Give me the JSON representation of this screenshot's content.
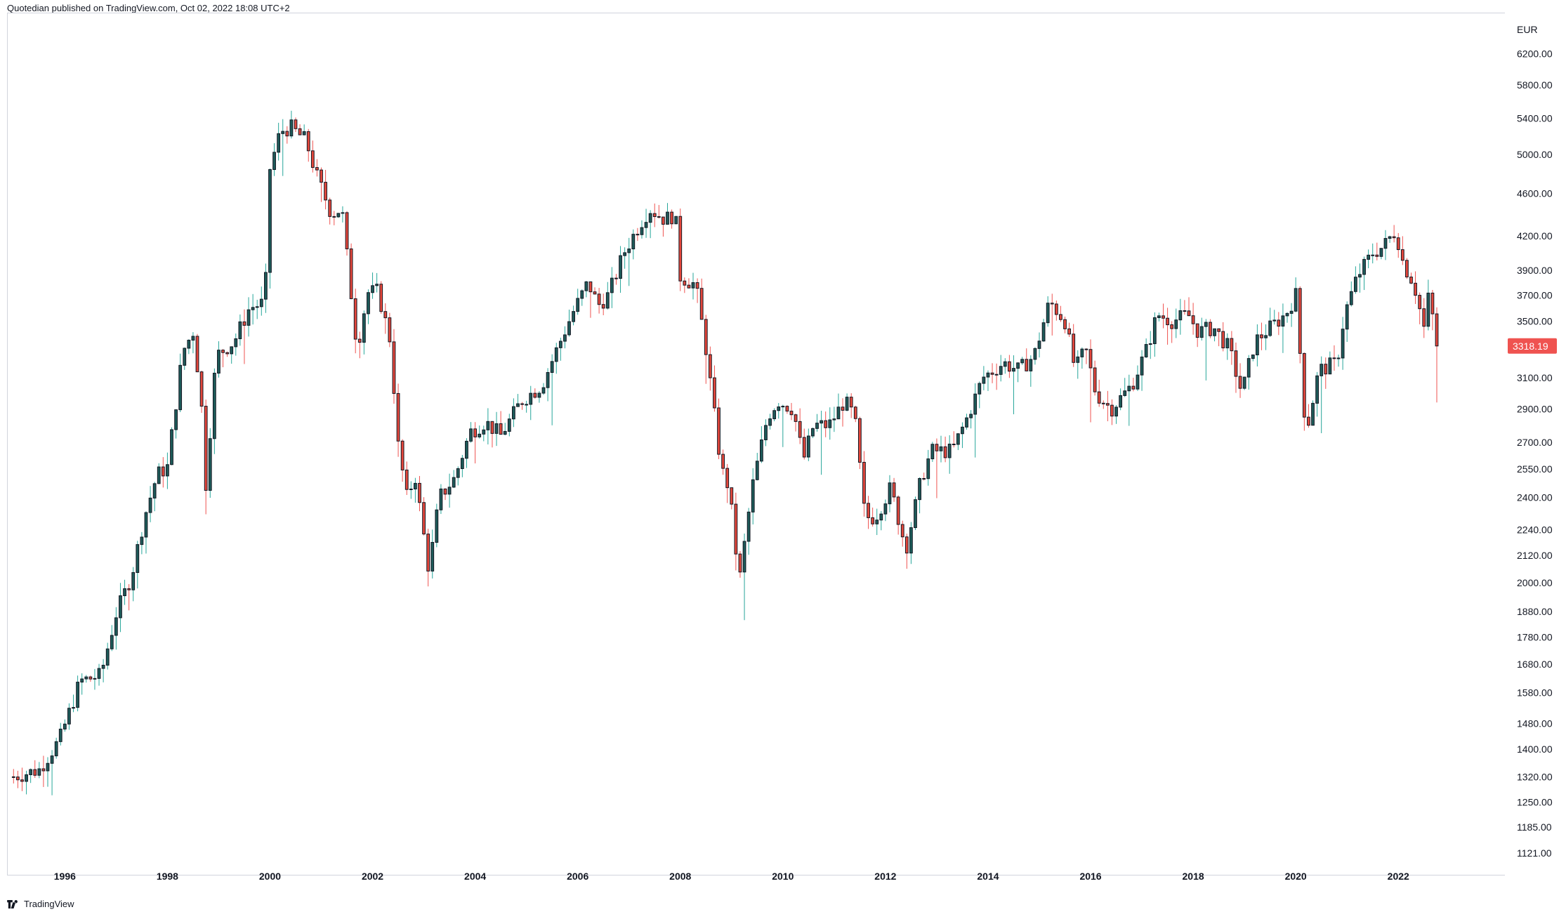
{
  "header": {
    "published_line": "Quotedian published on TradingView.com, Oct 02, 2022 18:08 UTC+2"
  },
  "footer": {
    "brand": "TradingView"
  },
  "colors": {
    "up": "#26a69a",
    "down": "#ef5350",
    "body_fill_up": "#1e5c5a",
    "body_fill_down": "#e5473c",
    "border": "#131722",
    "grid": "#d1d4dc",
    "price_tag": "#ef5350"
  },
  "chart_data": {
    "type": "candlestick",
    "currency": "EUR",
    "scale": "log",
    "ylim": [
      1080,
      6700
    ],
    "y_ticks": [
      6200,
      5800,
      5400,
      5000,
      4600,
      4200,
      3900,
      3700,
      3500,
      3100,
      2900,
      2700,
      2550,
      2400,
      2240,
      2120,
      2000,
      1880,
      1780,
      1680,
      1580,
      1480,
      1400,
      1320,
      1250,
      1185,
      1121
    ],
    "y_tick_labels": [
      "6200.00",
      "5800.00",
      "5400.00",
      "5000.00",
      "4600.00",
      "4200.00",
      "3900.00",
      "3700.00",
      "3500.00",
      "3100.00",
      "2900.00",
      "2700.00",
      "2550.00",
      "2400.00",
      "2240.00",
      "2120.00",
      "2000.00",
      "1880.00",
      "1780.00",
      "1680.00",
      "1580.00",
      "1480.00",
      "1400.00",
      "1320.00",
      "1250.00",
      "1185.00",
      "1121.00"
    ],
    "x_tick_labels": [
      "1996",
      "1998",
      "2000",
      "2002",
      "2004",
      "2006",
      "2008",
      "2010",
      "2012",
      "2014",
      "2016",
      "2018",
      "2020",
      "2022"
    ],
    "x_range_years": [
      1994.9,
      2023.9
    ],
    "last_price": 3318.19,
    "last_price_label": "3318.19",
    "interval": "monthly",
    "close_path": [
      [
        1995.0,
        1320
      ],
      [
        1995.5,
        1340
      ],
      [
        1995.9,
        1430
      ],
      [
        1996.3,
        1620
      ],
      [
        1996.7,
        1640
      ],
      [
        1997.0,
        1870
      ],
      [
        1997.3,
        2030
      ],
      [
        1997.55,
        2300
      ],
      [
        1997.8,
        2520
      ],
      [
        1998.0,
        2560
      ],
      [
        1998.3,
        3280
      ],
      [
        1998.5,
        3420
      ],
      [
        1998.65,
        3000
      ],
      [
        1998.75,
        2470
      ],
      [
        1998.95,
        3250
      ],
      [
        1999.3,
        3350
      ],
      [
        1999.6,
        3600
      ],
      [
        1999.9,
        3640
      ],
      [
        2000.0,
        4850
      ],
      [
        2000.2,
        5250
      ],
      [
        2000.4,
        5300
      ],
      [
        2000.7,
        5150
      ],
      [
        2000.9,
        4790
      ],
      [
        2001.2,
        4400
      ],
      [
        2001.4,
        4450
      ],
      [
        2001.7,
        3300
      ],
      [
        2001.9,
        3720
      ],
      [
        2002.1,
        3730
      ],
      [
        2002.35,
        3350
      ],
      [
        2002.5,
        2680
      ],
      [
        2002.7,
        2350
      ],
      [
        2002.8,
        2570
      ],
      [
        2003.1,
        2050
      ],
      [
        2003.3,
        2400
      ],
      [
        2003.6,
        2500
      ],
      [
        2003.9,
        2760
      ],
      [
        2004.2,
        2820
      ],
      [
        2004.5,
        2740
      ],
      [
        2004.9,
        2950
      ],
      [
        2005.3,
        3050
      ],
      [
        2005.6,
        3300
      ],
      [
        2005.9,
        3560
      ],
      [
        2006.2,
        3800
      ],
      [
        2006.4,
        3620
      ],
      [
        2006.6,
        3700
      ],
      [
        2006.9,
        4050
      ],
      [
        2007.2,
        4300
      ],
      [
        2007.4,
        4450
      ],
      [
        2007.7,
        4350
      ],
      [
        2007.9,
        4400
      ],
      [
        2008.0,
        3850
      ],
      [
        2008.3,
        3780
      ],
      [
        2008.5,
        3300
      ],
      [
        2008.8,
        2550
      ],
      [
        2008.95,
        2450
      ],
      [
        2009.15,
        2000
      ],
      [
        2009.4,
        2450
      ],
      [
        2009.7,
        2850
      ],
      [
        2009.9,
        2950
      ],
      [
        2010.2,
        2900
      ],
      [
        2010.4,
        2600
      ],
      [
        2010.6,
        2800
      ],
      [
        2010.9,
        2800
      ],
      [
        2011.2,
        2950
      ],
      [
        2011.4,
        2850
      ],
      [
        2011.6,
        2300
      ],
      [
        2011.8,
        2300
      ],
      [
        2012.1,
        2450
      ],
      [
        2012.4,
        2150
      ],
      [
        2012.7,
        2500
      ],
      [
        2012.9,
        2650
      ],
      [
        2013.3,
        2650
      ],
      [
        2013.6,
        2850
      ],
      [
        2013.9,
        3100
      ],
      [
        2014.3,
        3200
      ],
      [
        2014.6,
        3150
      ],
      [
        2014.9,
        3250
      ],
      [
        2015.2,
        3650
      ],
      [
        2015.5,
        3500
      ],
      [
        2015.7,
        3150
      ],
      [
        2015.9,
        3300
      ],
      [
        2016.1,
        3000
      ],
      [
        2016.4,
        2900
      ],
      [
        2016.8,
        3050
      ],
      [
        2017.1,
        3300
      ],
      [
        2017.3,
        3550
      ],
      [
        2017.6,
        3500
      ],
      [
        2017.9,
        3550
      ],
      [
        2018.1,
        3420
      ],
      [
        2018.4,
        3450
      ],
      [
        2018.7,
        3300
      ],
      [
        2018.95,
        3000
      ],
      [
        2019.2,
        3350
      ],
      [
        2019.5,
        3450
      ],
      [
        2019.8,
        3550
      ],
      [
        2020.0,
        3700
      ],
      [
        2020.2,
        2750
      ],
      [
        2020.45,
        3150
      ],
      [
        2020.8,
        3200
      ],
      [
        2020.95,
        3550
      ],
      [
        2021.2,
        3850
      ],
      [
        2021.5,
        4050
      ],
      [
        2021.7,
        4100
      ],
      [
        2021.95,
        4250
      ],
      [
        2022.1,
        3950
      ],
      [
        2022.3,
        3800
      ],
      [
        2022.5,
        3450
      ],
      [
        2022.6,
        3720
      ],
      [
        2022.75,
        3318
      ]
    ]
  }
}
